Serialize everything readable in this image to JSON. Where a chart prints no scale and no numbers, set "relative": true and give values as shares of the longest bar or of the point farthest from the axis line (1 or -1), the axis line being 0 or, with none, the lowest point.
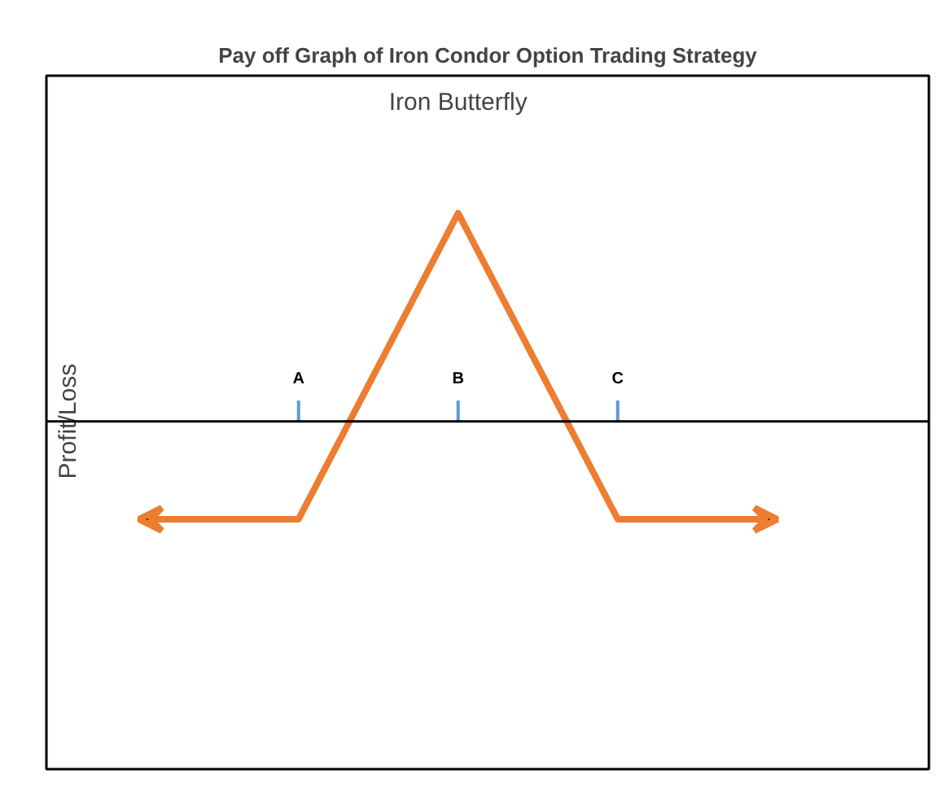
{
  "chart_data": {
    "type": "line",
    "title": "Pay off Graph of Iron Condor Option Trading Strategy",
    "subtitle": "Iron Butterfly",
    "ylabel": "Profit/Loss",
    "relative": true,
    "categories": [
      null,
      "A",
      "B",
      "C",
      null
    ],
    "series": [
      {
        "color": "#ed7d31",
        "values": [
          -0.47,
          -0.47,
          1,
          -0.47,
          -0.47
        ]
      }
    ],
    "grid": false
  }
}
